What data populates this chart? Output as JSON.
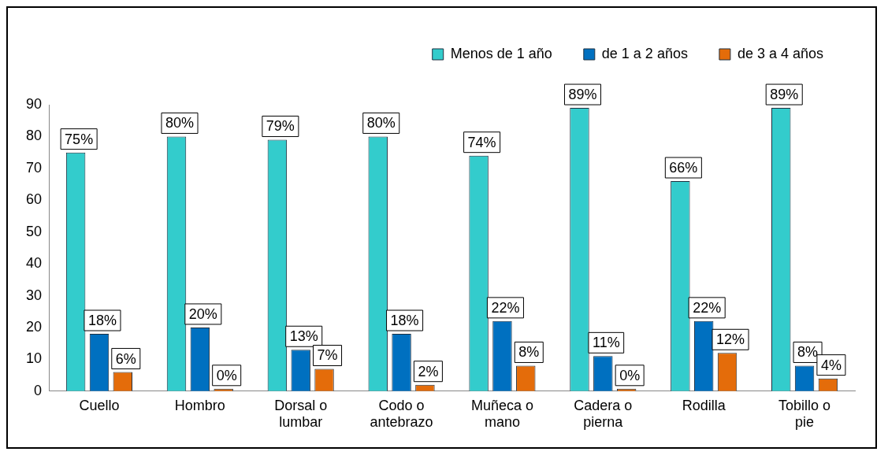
{
  "chart_data": {
    "type": "bar",
    "categories": [
      "Cuello",
      "Hombro",
      "Dorsal o lumbar",
      "Codo o antebrazo",
      "Muñeca o mano",
      "Cadera o pierna",
      "Rodilla",
      "Tobillo o pie"
    ],
    "series": [
      {
        "name": "Menos de 1 año",
        "color": "#33cccc",
        "values": [
          75,
          80,
          79,
          80,
          74,
          89,
          66,
          89
        ],
        "value_labels": [
          "75%",
          "80%",
          "79%",
          "80%",
          "74%",
          "89%",
          "66%",
          "89%"
        ]
      },
      {
        "name": "de 1 a 2 años",
        "color": "#0070c0",
        "values": [
          18,
          20,
          13,
          18,
          22,
          11,
          22,
          8
        ],
        "value_labels": [
          "18%",
          "20%",
          "13%",
          "18%",
          "22%",
          "11%",
          "22%",
          "8%"
        ]
      },
      {
        "name": "de 3 a 4 años",
        "color": "#e46c0a",
        "values": [
          6,
          0,
          7,
          2,
          8,
          0,
          12,
          4
        ],
        "value_labels": [
          "6%",
          "0%",
          "7%",
          "2%",
          "8%",
          "0%",
          "12%",
          "4%"
        ]
      }
    ],
    "ylim": [
      0,
      90
    ],
    "yticks": [
      0,
      10,
      20,
      30,
      40,
      50,
      60,
      70,
      80,
      90
    ],
    "grid": false,
    "legend": "top right"
  }
}
